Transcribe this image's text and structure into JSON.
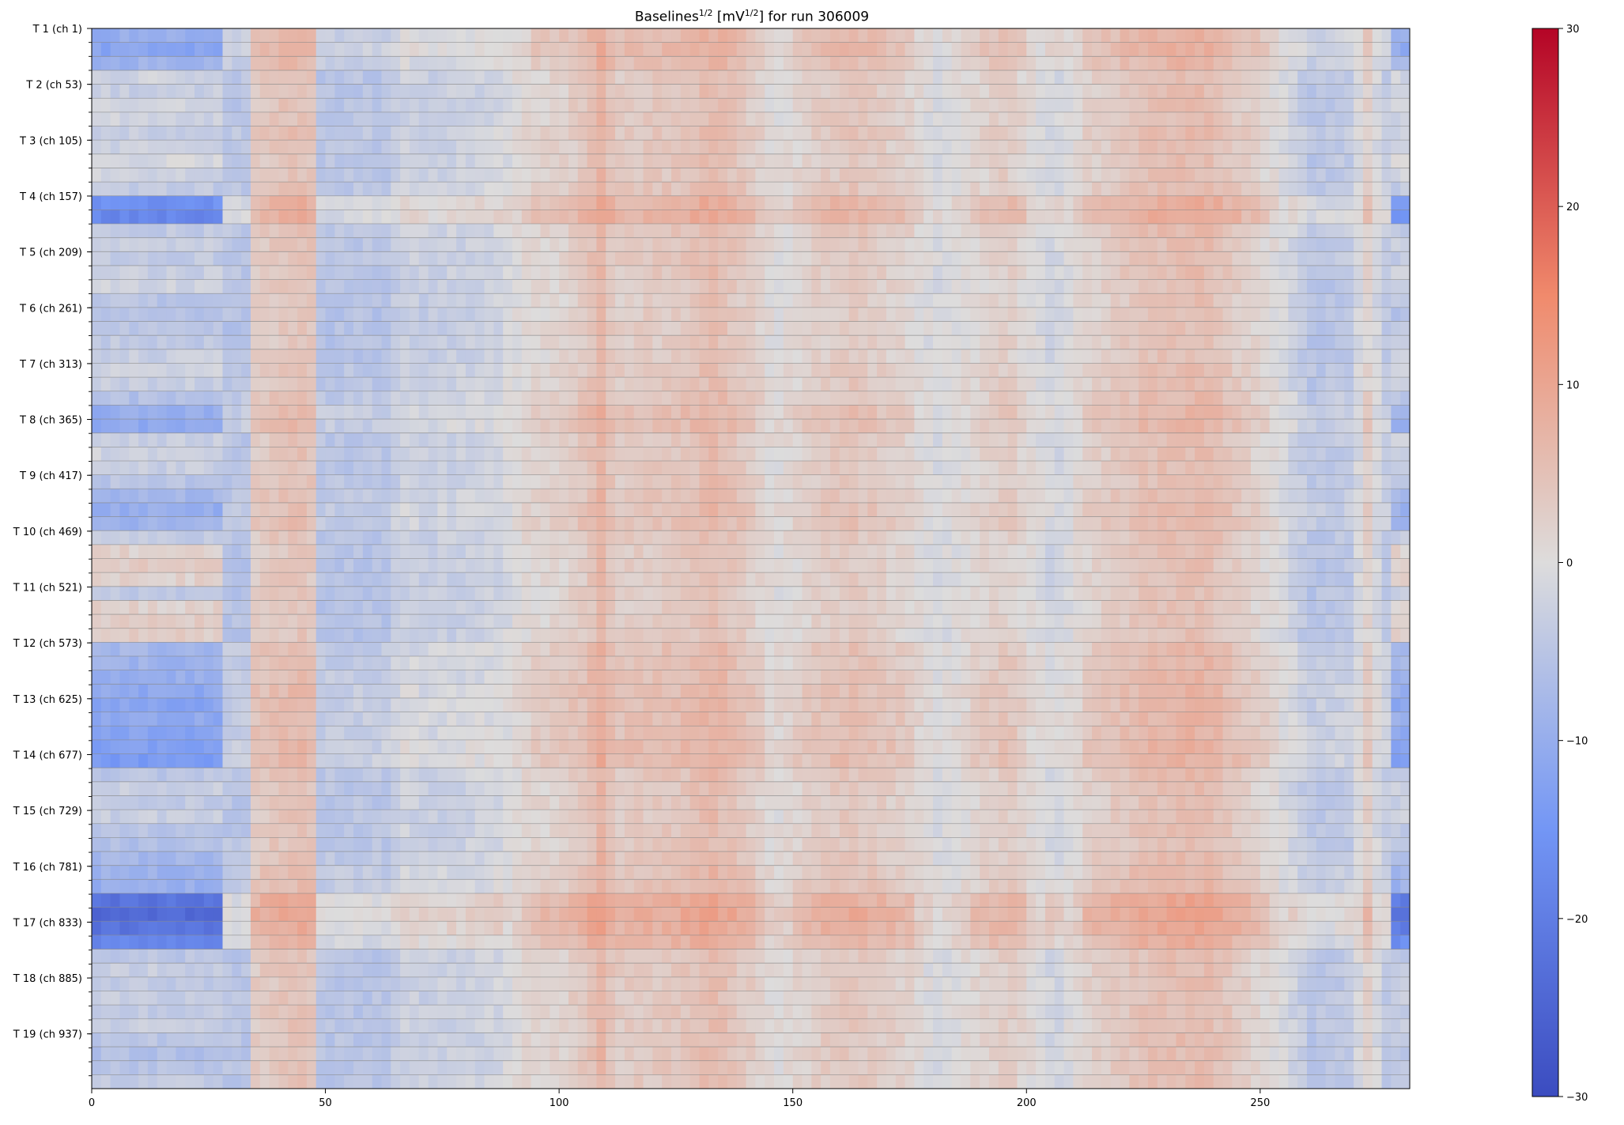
{
  "chart_data": {
    "type": "heatmap",
    "title": {
      "prefix": "Baselines",
      "sup1": "1/2",
      "mid": " [mV",
      "sup2": "1/2",
      "suffix": "] for run 306009"
    },
    "xlabel": "",
    "ylabel": "",
    "xlim": [
      0,
      282
    ],
    "ylim": [
      1,
      988
    ],
    "x_ticks": [
      0,
      50,
      100,
      150,
      200,
      250
    ],
    "y_labels": [
      "T 1 (ch 1)",
      "T 2 (ch 53)",
      "T 3 (ch 105)",
      "T 4 (ch 157)",
      "T 5 (ch 209)",
      "T 6 (ch 261)",
      "T 7 (ch 313)",
      "T 8 (ch 365)",
      "T 9 (ch 417)",
      "T 10 (ch 469)",
      "T 11 (ch 521)",
      "T 12 (ch 573)",
      "T 13 (ch 625)",
      "T 14 (ch 677)",
      "T 15 (ch 729)",
      "T 16 (ch 781)",
      "T 17 (ch 833)",
      "T 18 (ch 885)",
      "T 19 (ch 937)"
    ],
    "y_label_channels": [
      1,
      53,
      105,
      157,
      209,
      261,
      313,
      365,
      417,
      469,
      521,
      573,
      625,
      677,
      729,
      781,
      833,
      885,
      937
    ],
    "channels_per_module": 52,
    "colormap": "coolwarm",
    "colorbar": {
      "vmin": -30,
      "vmax": 30,
      "ticks": [
        -30,
        -20,
        -10,
        0,
        10,
        20,
        30
      ],
      "tick_labels": [
        "−30",
        "−20",
        "−10",
        "0",
        "10",
        "20",
        "30"
      ],
      "colors": {
        "min": "#3b4cc0",
        "low": "#7396f5",
        "mid": "#dddcdc",
        "high": "#f08a6c",
        "max": "#b40426"
      }
    },
    "band_count": 76,
    "column_count": 282,
    "column_profile": [
      {
        "x": 0,
        "v": -3
      },
      {
        "x": 26,
        "v": -3
      },
      {
        "x": 27,
        "v": -5
      },
      {
        "x": 32,
        "v": -5
      },
      {
        "x": 34,
        "v": 3
      },
      {
        "x": 43,
        "v": 5
      },
      {
        "x": 47,
        "v": 4
      },
      {
        "x": 48,
        "v": -5
      },
      {
        "x": 63,
        "v": -5
      },
      {
        "x": 65,
        "v": -2
      },
      {
        "x": 70,
        "v": -3
      },
      {
        "x": 85,
        "v": -2
      },
      {
        "x": 92,
        "v": 1
      },
      {
        "x": 100,
        "v": 2
      },
      {
        "x": 105,
        "v": 4
      },
      {
        "x": 108,
        "v": 7
      },
      {
        "x": 111,
        "v": 3
      },
      {
        "x": 125,
        "v": 4
      },
      {
        "x": 132,
        "v": 6
      },
      {
        "x": 140,
        "v": 3
      },
      {
        "x": 145,
        "v": 0
      },
      {
        "x": 155,
        "v": 3
      },
      {
        "x": 162,
        "v": 4
      },
      {
        "x": 173,
        "v": 2
      },
      {
        "x": 180,
        "v": -1
      },
      {
        "x": 195,
        "v": 3
      },
      {
        "x": 205,
        "v": -2
      },
      {
        "x": 212,
        "v": 2
      },
      {
        "x": 225,
        "v": 5
      },
      {
        "x": 237,
        "v": 6
      },
      {
        "x": 245,
        "v": 3
      },
      {
        "x": 253,
        "v": 0
      },
      {
        "x": 260,
        "v": -5
      },
      {
        "x": 268,
        "v": -4
      },
      {
        "x": 272,
        "v": 2
      },
      {
        "x": 276,
        "v": -4
      },
      {
        "x": 282,
        "v": -6
      }
    ],
    "band_profile": [
      {
        "band": 0,
        "left": -10,
        "v": 4
      },
      {
        "band": 1,
        "left": -12,
        "v": 5
      },
      {
        "band": 2,
        "left": -9,
        "v": 3
      },
      {
        "band": 3,
        "left": -2,
        "v": 0
      },
      {
        "band": 4,
        "left": -3,
        "v": 0
      },
      {
        "band": 5,
        "left": -1,
        "v": 0
      },
      {
        "band": 6,
        "left": -2,
        "v": 0
      },
      {
        "band": 7,
        "left": -3,
        "v": 1
      },
      {
        "band": 8,
        "left": -2,
        "v": 0
      },
      {
        "band": 9,
        "left": -1,
        "v": 0
      },
      {
        "band": 10,
        "left": -2,
        "v": 0
      },
      {
        "band": 11,
        "left": -4,
        "v": 1
      },
      {
        "band": 12,
        "left": -16,
        "v": 6
      },
      {
        "band": 13,
        "left": -18,
        "v": 7
      },
      {
        "band": 14,
        "left": -4,
        "v": 1
      },
      {
        "band": 15,
        "left": -3,
        "v": 0
      },
      {
        "band": 16,
        "left": -4,
        "v": 0
      },
      {
        "band": 17,
        "left": -3,
        "v": 0
      },
      {
        "band": 18,
        "left": -2,
        "v": -1
      },
      {
        "band": 19,
        "left": -5,
        "v": -1
      },
      {
        "band": 20,
        "left": -6,
        "v": -1
      },
      {
        "band": 21,
        "left": -5,
        "v": -1
      },
      {
        "band": 22,
        "left": -4,
        "v": -1
      },
      {
        "band": 23,
        "left": -3,
        "v": -1
      },
      {
        "band": 24,
        "left": -2,
        "v": 0
      },
      {
        "band": 25,
        "left": -3,
        "v": 0
      },
      {
        "band": 26,
        "left": -6,
        "v": 1
      },
      {
        "band": 27,
        "left": -10,
        "v": 3
      },
      {
        "band": 28,
        "left": -11,
        "v": 3
      },
      {
        "band": 29,
        "left": -3,
        "v": 0
      },
      {
        "band": 30,
        "left": -2,
        "v": 0
      },
      {
        "band": 31,
        "left": -3,
        "v": 0
      },
      {
        "band": 32,
        "left": -5,
        "v": 0
      },
      {
        "band": 33,
        "left": -8,
        "v": 1
      },
      {
        "band": 34,
        "left": -10,
        "v": 2
      },
      {
        "band": 35,
        "left": -9,
        "v": 2
      },
      {
        "band": 36,
        "left": -4,
        "v": 0
      },
      {
        "band": 37,
        "left": 2,
        "v": -1
      },
      {
        "band": 38,
        "left": 3,
        "v": -1
      },
      {
        "band": 39,
        "left": 2,
        "v": -1
      },
      {
        "band": 40,
        "left": -4,
        "v": -1
      },
      {
        "band": 41,
        "left": 2,
        "v": -1
      },
      {
        "band": 42,
        "left": 3,
        "v": -1
      },
      {
        "band": 43,
        "left": 3,
        "v": -1
      },
      {
        "band": 44,
        "left": -8,
        "v": 2
      },
      {
        "band": 45,
        "left": -9,
        "v": 2
      },
      {
        "band": 46,
        "left": -10,
        "v": 2
      },
      {
        "band": 47,
        "left": -11,
        "v": 3
      },
      {
        "band": 48,
        "left": -12,
        "v": 3
      },
      {
        "band": 49,
        "left": -11,
        "v": 3
      },
      {
        "band": 50,
        "left": -12,
        "v": 3
      },
      {
        "band": 51,
        "left": -13,
        "v": 4
      },
      {
        "band": 52,
        "left": -14,
        "v": 4
      },
      {
        "band": 53,
        "left": -5,
        "v": 1
      },
      {
        "band": 54,
        "left": -3,
        "v": 0
      },
      {
        "band": 55,
        "left": -4,
        "v": 0
      },
      {
        "band": 56,
        "left": -3,
        "v": 0
      },
      {
        "band": 57,
        "left": -5,
        "v": 0
      },
      {
        "band": 58,
        "left": -6,
        "v": 0
      },
      {
        "band": 59,
        "left": -8,
        "v": 1
      },
      {
        "band": 60,
        "left": -9,
        "v": 2
      },
      {
        "band": 61,
        "left": -10,
        "v": 2
      },
      {
        "band": 62,
        "left": -22,
        "v": 8
      },
      {
        "band": 63,
        "left": -24,
        "v": 9
      },
      {
        "band": 64,
        "left": -22,
        "v": 8
      },
      {
        "band": 65,
        "left": -18,
        "v": 6
      },
      {
        "band": 66,
        "left": -5,
        "v": 0
      },
      {
        "band": 67,
        "left": -3,
        "v": 0
      },
      {
        "band": 68,
        "left": -4,
        "v": 0
      },
      {
        "band": 69,
        "left": -3,
        "v": 0
      },
      {
        "band": 70,
        "left": -4,
        "v": 0
      },
      {
        "band": 71,
        "left": -3,
        "v": 0
      },
      {
        "band": 72,
        "left": -5,
        "v": 0
      },
      {
        "band": 73,
        "left": -6,
        "v": 0
      },
      {
        "band": 74,
        "left": -5,
        "v": 0
      },
      {
        "band": 75,
        "left": -4,
        "v": 0
      }
    ]
  }
}
